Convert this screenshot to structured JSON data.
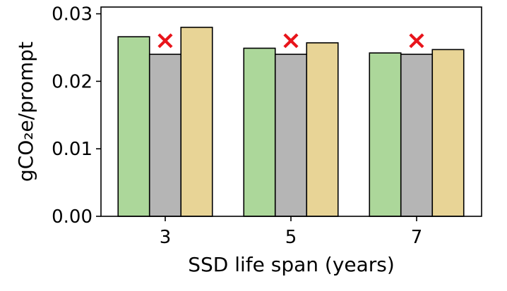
{
  "chart_data": {
    "type": "bar",
    "categories": [
      "3",
      "5",
      "7"
    ],
    "series": [
      {
        "values": [
          0.0266,
          0.0249,
          0.0242
        ],
        "color": "#acd79a"
      },
      {
        "values": [
          0.024,
          0.024,
          0.024
        ],
        "color": "#b5b5b5"
      },
      {
        "values": [
          0.028,
          0.0257,
          0.0247
        ],
        "color": "#e8d496"
      }
    ],
    "xlabel": "SSD life span (years)",
    "ylabel": "gCO₂e/prompt",
    "ylim": [
      0,
      0.031
    ],
    "yticks": [
      "0.00",
      "0.01",
      "0.02",
      "0.03"
    ],
    "yticks_values": [
      0,
      0.01,
      0.02,
      0.03
    ],
    "markers": [
      {
        "category": "3",
        "y": 0.026,
        "symbol": "×",
        "color": "#e8141b"
      },
      {
        "category": "5",
        "y": 0.026,
        "symbol": "×",
        "color": "#e8141b"
      },
      {
        "category": "7",
        "y": 0.026,
        "symbol": "×",
        "color": "#e8141b"
      }
    ],
    "grid": false,
    "legend": "none"
  }
}
